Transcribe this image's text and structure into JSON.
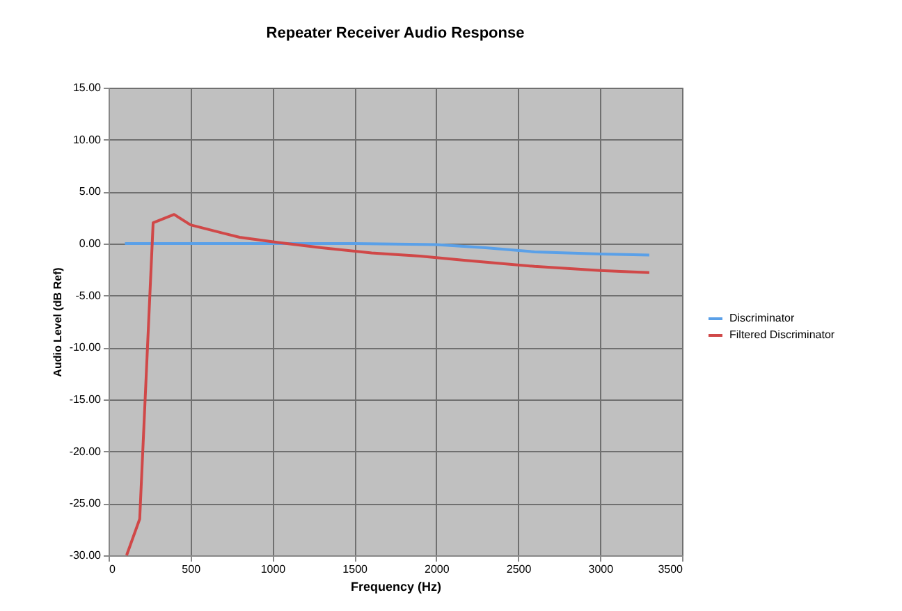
{
  "chart_data": {
    "type": "line",
    "title": "Repeater Receiver Audio Response",
    "xlabel": "Frequency (Hz)",
    "ylabel": "Audio Level (dB Ref)",
    "xlim": [
      0,
      3500
    ],
    "xticks": [
      0,
      500,
      1000,
      1500,
      2000,
      2500,
      3000,
      3500
    ],
    "ylim": [
      -30,
      15
    ],
    "yticks": [
      {
        "value": -30,
        "label": "-30.00"
      },
      {
        "value": -25,
        "label": "-25.00"
      },
      {
        "value": -20,
        "label": "-20.00"
      },
      {
        "value": -15,
        "label": "-15.00"
      },
      {
        "value": -10,
        "label": "-10.00"
      },
      {
        "value": -5,
        "label": "-5.00"
      },
      {
        "value": 0,
        "label": "0.00"
      },
      {
        "value": 5,
        "label": "5.00"
      },
      {
        "value": 10,
        "label": "10.00"
      },
      {
        "value": 15,
        "label": "15.00"
      }
    ],
    "grid": true,
    "legend": "right",
    "series": [
      {
        "name": "Discriminator",
        "color": "#5aa0e8",
        "x": [
          100,
          300,
          500,
          800,
          1000,
          1500,
          2000,
          2300,
          2600,
          3000,
          3300
        ],
        "values": [
          0,
          0,
          0,
          0,
          0,
          0,
          -0.1,
          -0.4,
          -0.8,
          -1.0,
          -1.1
        ]
      },
      {
        "name": "Filtered Discriminator",
        "color": "#d04848",
        "x": [
          110,
          190,
          272,
          400,
          500,
          700,
          800,
          1036,
          1300,
          1605,
          1900,
          2170,
          2600,
          3000,
          3300
        ],
        "values": [
          -30,
          -26.5,
          2.0,
          2.8,
          1.8,
          1.0,
          0.6,
          0.1,
          -0.4,
          -0.9,
          -1.2,
          -1.6,
          -2.2,
          -2.6,
          -2.8
        ]
      }
    ]
  }
}
